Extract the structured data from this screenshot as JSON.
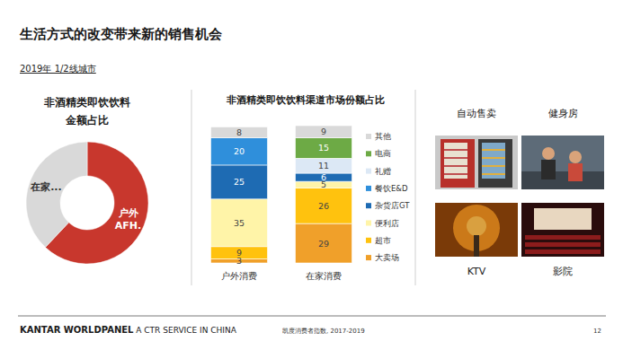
{
  "header": {
    "title": "生活方式的改变带来新的销售机会",
    "subtitle": "2019年 1/2线城市"
  },
  "chart_data": [
    {
      "type": "pie",
      "title": "非酒精类即饮饮料\n金额占比",
      "categories": [
        "户外\nAFH.",
        "在家..."
      ],
      "values": [
        62,
        38
      ],
      "colors": [
        "#C8372D",
        "#D9D9D9"
      ],
      "data_labels": false
    },
    {
      "type": "bar",
      "title": "非酒精类即饮饮料渠道市场份额占比",
      "stacked": true,
      "data_labels": true,
      "tick_labels": "x",
      "legend": "right",
      "categories": [
        "户外消费",
        "在家消费"
      ],
      "ylim": [
        0,
        101
      ],
      "series": [
        {
          "name": "大卖场",
          "color": "#F0A02A",
          "values": [
            3,
            29
          ]
        },
        {
          "name": "超市",
          "color": "#FFC20E",
          "values": [
            9,
            26
          ]
        },
        {
          "name": "便利店",
          "color": "#FFF4A8",
          "values": [
            35,
            5
          ]
        },
        {
          "name": "杂货店GT",
          "color": "#1E6BB3",
          "values": [
            25,
            6
          ]
        },
        {
          "name": "餐饮E&D",
          "color": "#2F8FDB",
          "values": [
            20,
            null
          ]
        },
        {
          "name": "礼赠",
          "color": "#DCE8F5",
          "values": [
            null,
            11
          ]
        },
        {
          "name": "电商",
          "color": "#6DAA45",
          "values": [
            null,
            15
          ]
        },
        {
          "name": "其他",
          "color": "#D9D9D9",
          "values": [
            8,
            9
          ]
        }
      ]
    }
  ],
  "panels": [
    {
      "label": "自动售卖"
    },
    {
      "label": "健身房"
    },
    {
      "label": "KTV"
    },
    {
      "label": "影院"
    }
  ],
  "footer": {
    "brand": "KANTAR WORLDPANEL",
    "tagline": " A CTR SERVICE IN CHINA",
    "source": "凯度消费者指数, 2017-2019",
    "page": 12
  }
}
